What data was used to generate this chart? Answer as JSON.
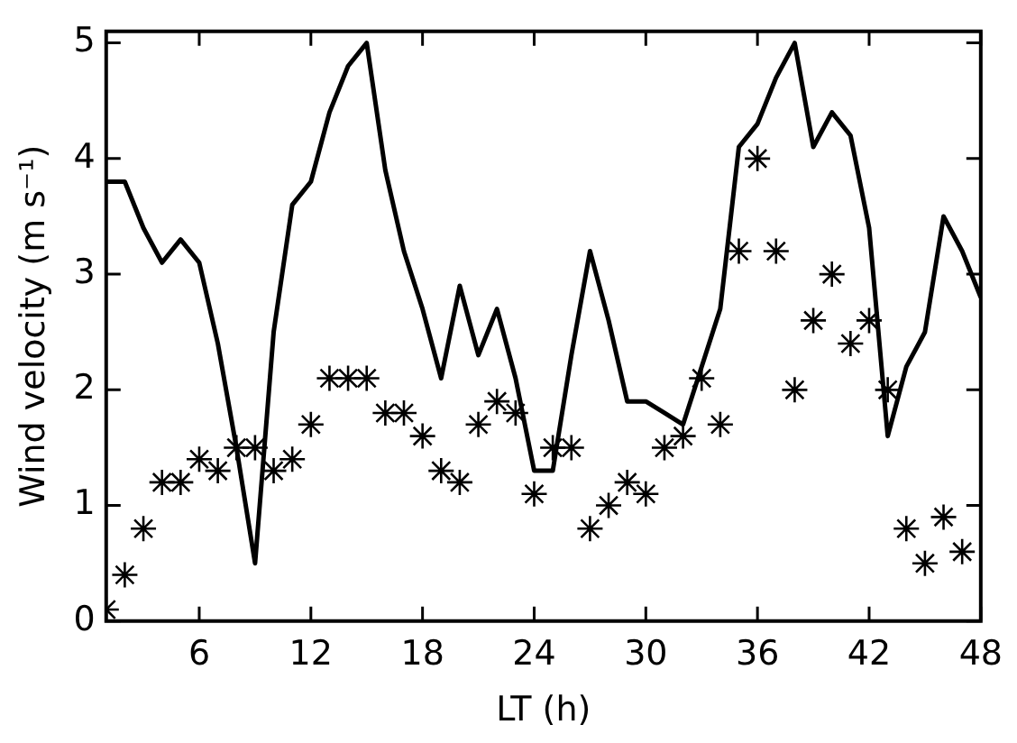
{
  "chart_data": {
    "type": "line",
    "xlabel": "LT (h)",
    "ylabel": "Wind velocity (m s⁻¹)",
    "x": [
      1,
      2,
      3,
      4,
      5,
      6,
      7,
      8,
      9,
      10,
      11,
      12,
      13,
      14,
      15,
      16,
      17,
      18,
      19,
      20,
      21,
      22,
      23,
      24,
      25,
      26,
      27,
      28,
      29,
      30,
      31,
      32,
      33,
      34,
      35,
      36,
      37,
      38,
      39,
      40,
      41,
      42,
      43,
      44,
      45,
      46,
      47,
      48
    ],
    "series": [
      {
        "type": "line",
        "color": "#000000",
        "marker": "none",
        "values": [
          3.8,
          3.8,
          3.4,
          3.1,
          3.3,
          3.1,
          2.4,
          1.5,
          0.5,
          2.5,
          3.6,
          3.8,
          4.4,
          4.8,
          5.0,
          3.9,
          3.2,
          2.7,
          2.1,
          2.9,
          2.3,
          2.7,
          2.1,
          1.3,
          1.3,
          2.3,
          3.2,
          2.6,
          1.9,
          1.9,
          1.8,
          1.7,
          2.2,
          2.7,
          4.1,
          4.3,
          4.7,
          5.0,
          4.1,
          4.4,
          4.2,
          3.4,
          1.6,
          2.2,
          2.5,
          3.5,
          3.2,
          2.8
        ]
      },
      {
        "type": "scatter",
        "color": "#000000",
        "marker": "cross",
        "values": [
          0.1,
          0.4,
          0.8,
          1.2,
          1.2,
          1.4,
          1.3,
          1.5,
          1.5,
          1.3,
          1.4,
          1.7,
          2.1,
          2.1,
          2.1,
          1.8,
          1.8,
          1.6,
          1.3,
          1.2,
          1.7,
          1.9,
          1.8,
          1.1,
          1.5,
          1.5,
          0.8,
          1.0,
          1.2,
          1.1,
          1.5,
          1.6,
          2.1,
          1.7,
          3.2,
          4.0,
          3.2,
          2.0,
          2.6,
          3.0,
          2.4,
          2.6,
          2.0,
          0.8,
          0.5,
          0.9,
          0.6,
          null
        ]
      }
    ],
    "xlim": [
      1,
      48
    ],
    "xticks": [
      6,
      12,
      18,
      24,
      30,
      36,
      42,
      48
    ],
    "ylim": [
      0,
      5.1
    ],
    "yticks": [
      0,
      1,
      2,
      3,
      4,
      5
    ],
    "grid": false,
    "legend": false
  }
}
